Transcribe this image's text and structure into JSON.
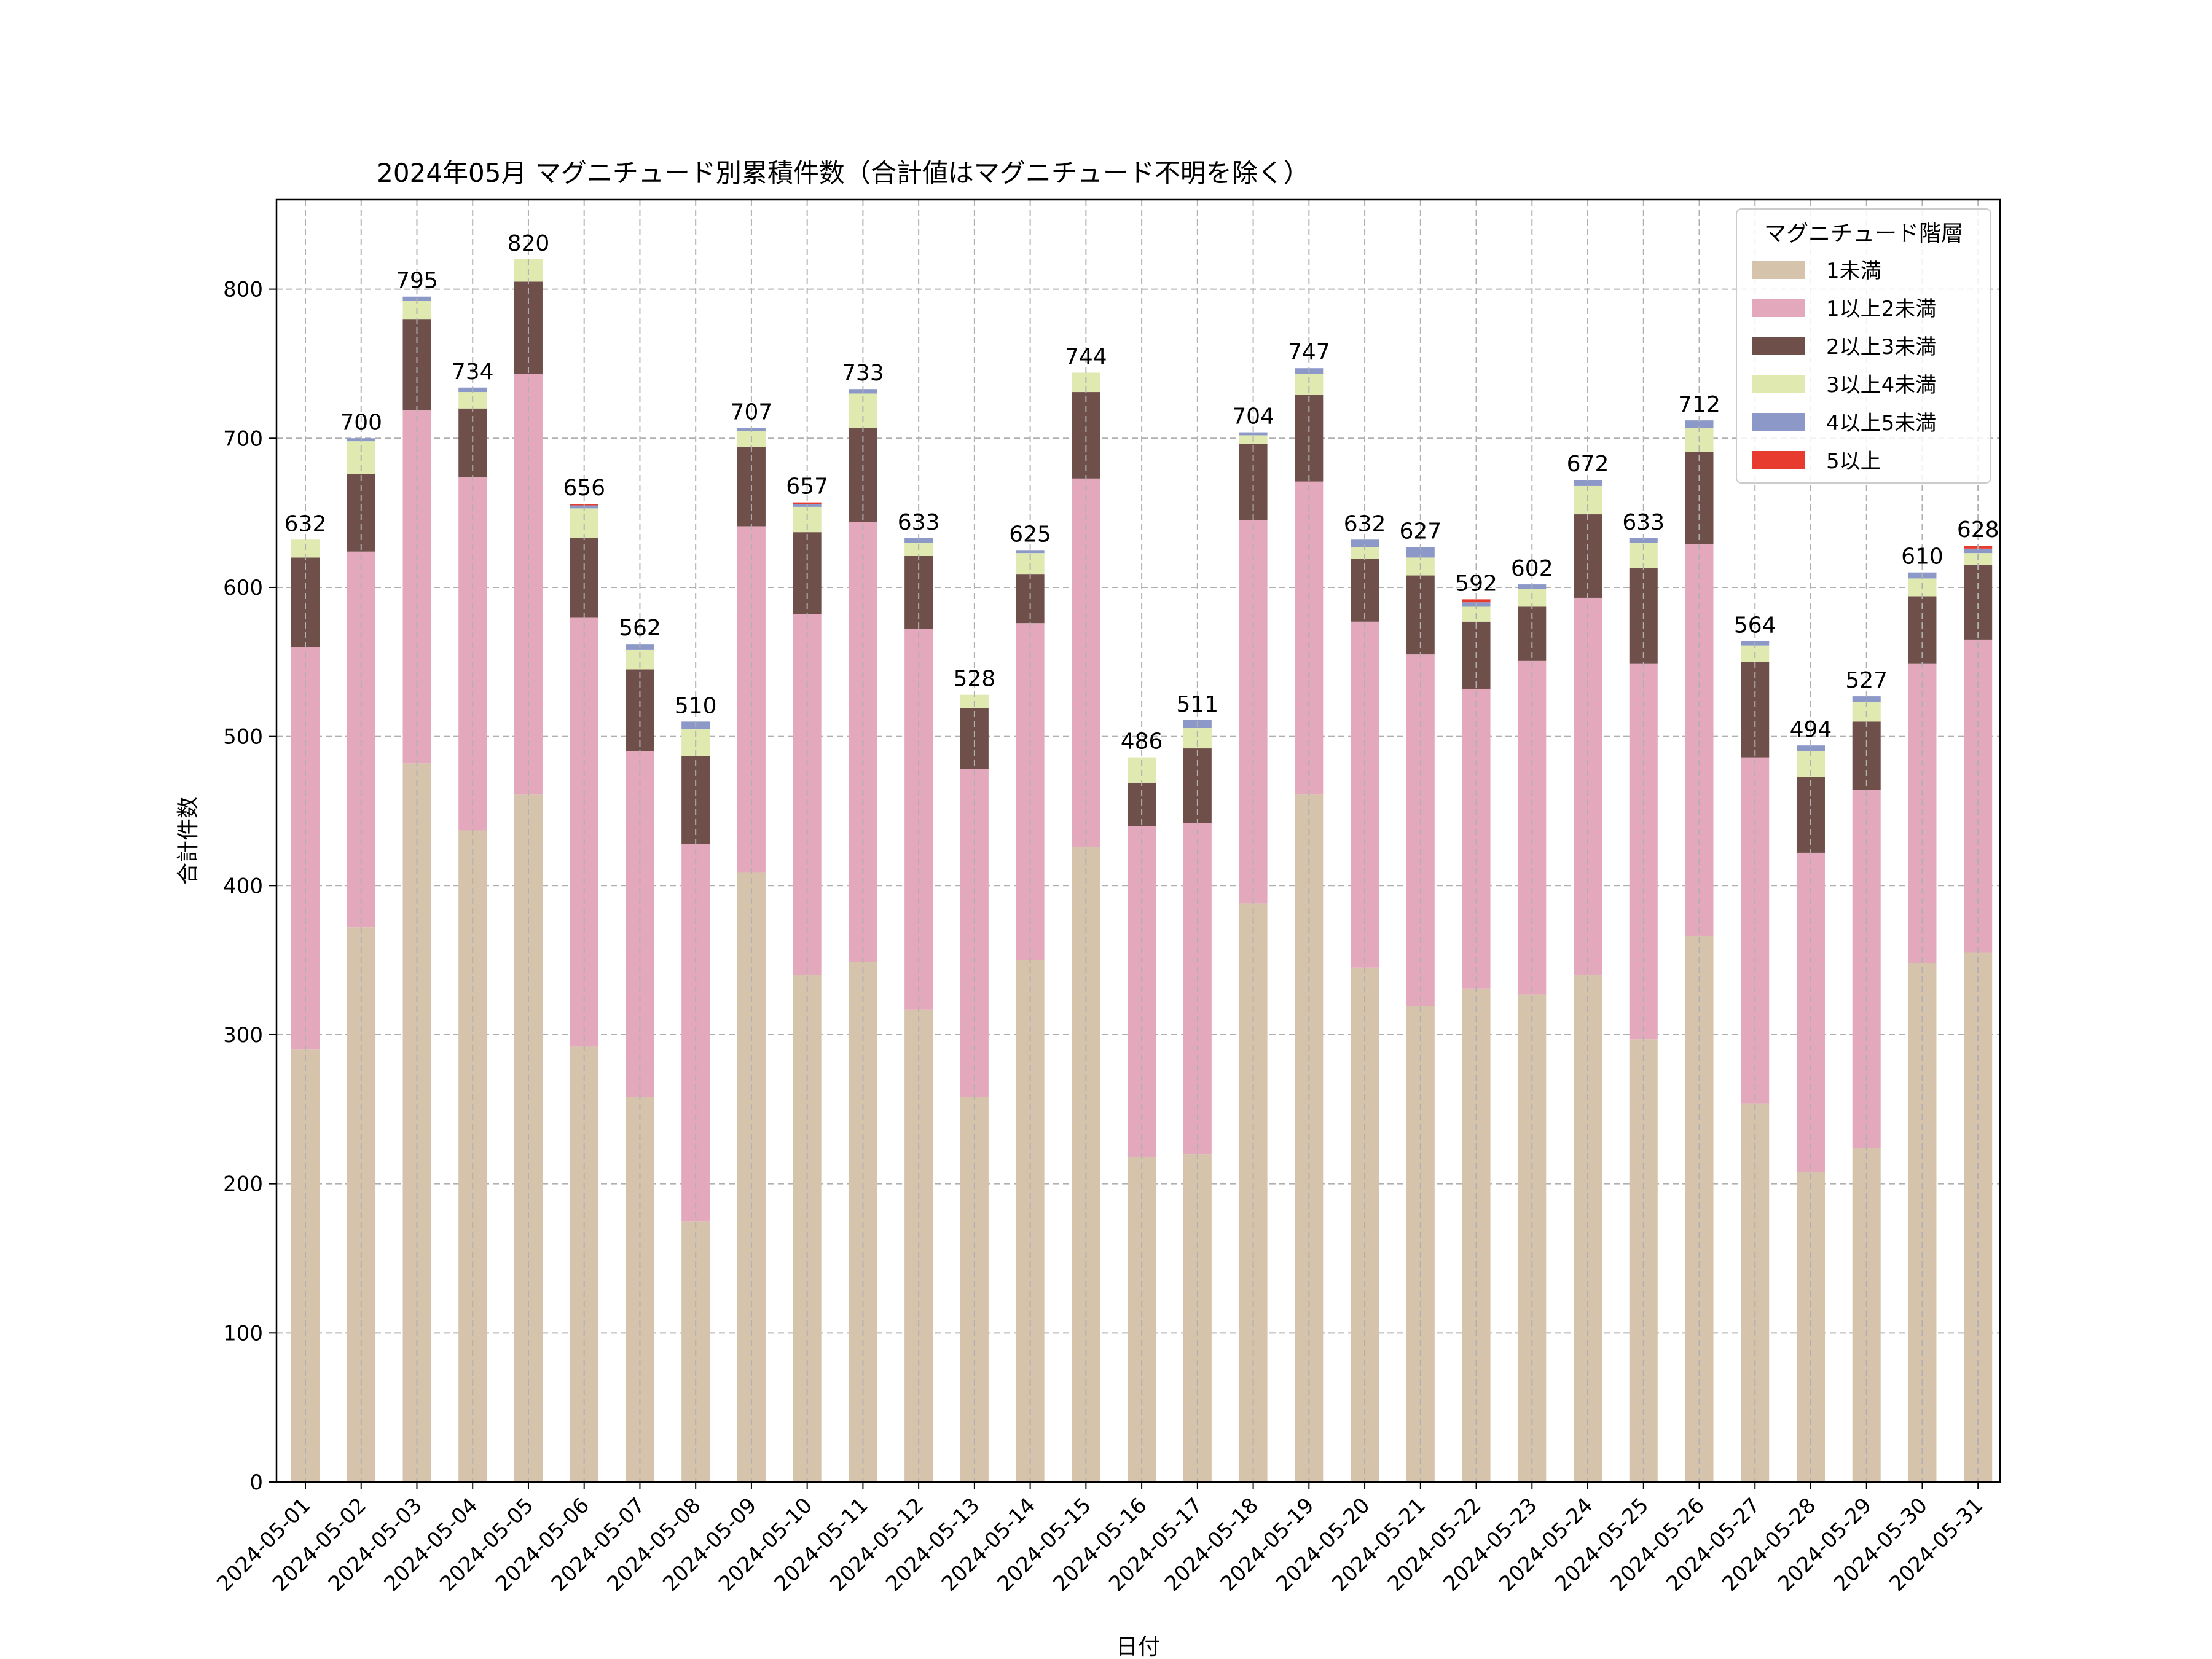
{
  "chart_data": {
    "type": "bar",
    "stacked": true,
    "title": "2024年05月 マグニチュード別累積件数（合計値はマグニチュード不明を除く）",
    "xlabel": "日付",
    "ylabel": "合計件数",
    "ylim": [
      0,
      860
    ],
    "yticks": [
      0,
      100,
      200,
      300,
      400,
      500,
      600,
      700,
      800
    ],
    "grid": true,
    "legend_title": "マグニチュード階層",
    "legend_position": "top-right",
    "categories": [
      "2024-05-01",
      "2024-05-02",
      "2024-05-03",
      "2024-05-04",
      "2024-05-05",
      "2024-05-06",
      "2024-05-07",
      "2024-05-08",
      "2024-05-09",
      "2024-05-10",
      "2024-05-11",
      "2024-05-12",
      "2024-05-13",
      "2024-05-14",
      "2024-05-15",
      "2024-05-16",
      "2024-05-17",
      "2024-05-18",
      "2024-05-19",
      "2024-05-20",
      "2024-05-21",
      "2024-05-22",
      "2024-05-23",
      "2024-05-24",
      "2024-05-25",
      "2024-05-26",
      "2024-05-27",
      "2024-05-28",
      "2024-05-29",
      "2024-05-30",
      "2024-05-31"
    ],
    "totals": [
      632,
      700,
      795,
      734,
      820,
      656,
      562,
      510,
      707,
      657,
      733,
      633,
      528,
      625,
      744,
      486,
      511,
      704,
      747,
      632,
      627,
      592,
      602,
      672,
      633,
      712,
      564,
      494,
      527,
      610,
      628
    ],
    "series": [
      {
        "name": "1未満",
        "color": "#d5c3ab",
        "values": [
          290,
          372,
          482,
          437,
          461,
          292,
          258,
          175,
          409,
          340,
          349,
          317,
          258,
          350,
          426,
          218,
          220,
          388,
          461,
          345,
          319,
          331,
          327,
          340,
          297,
          366,
          254,
          208,
          224,
          348,
          355
        ]
      },
      {
        "name": "1以上2未満",
        "color": "#e4a8bd",
        "values": [
          270,
          252,
          237,
          237,
          282,
          288,
          232,
          253,
          232,
          242,
          295,
          255,
          220,
          226,
          247,
          222,
          222,
          257,
          210,
          232,
          236,
          201,
          224,
          253,
          252,
          263,
          232,
          214,
          240,
          201,
          210
        ]
      },
      {
        "name": "2以上3未満",
        "color": "#6e4f4a",
        "values": [
          60,
          52,
          61,
          46,
          62,
          53,
          55,
          59,
          53,
          55,
          63,
          49,
          41,
          33,
          58,
          29,
          50,
          51,
          58,
          42,
          53,
          45,
          36,
          56,
          64,
          62,
          64,
          51,
          46,
          45,
          50
        ]
      },
      {
        "name": "3以上4未満",
        "color": "#dfe9b0",
        "values": [
          12,
          22,
          12,
          11,
          15,
          20,
          13,
          18,
          11,
          17,
          23,
          9,
          9,
          14,
          13,
          17,
          14,
          6,
          14,
          8,
          12,
          10,
          12,
          19,
          17,
          16,
          11,
          17,
          13,
          12,
          8
        ]
      },
      {
        "name": "4以上5未満",
        "color": "#8b98c8",
        "values": [
          0,
          2,
          3,
          3,
          0,
          2,
          4,
          5,
          2,
          2,
          3,
          3,
          0,
          2,
          0,
          0,
          5,
          2,
          4,
          5,
          7,
          3,
          3,
          4,
          3,
          5,
          3,
          4,
          4,
          4,
          3
        ]
      },
      {
        "name": "5以上",
        "color": "#e63b2e",
        "values": [
          0,
          0,
          0,
          0,
          0,
          1,
          0,
          0,
          0,
          1,
          0,
          0,
          0,
          0,
          0,
          0,
          0,
          0,
          0,
          0,
          0,
          2,
          0,
          0,
          0,
          0,
          0,
          0,
          0,
          0,
          2
        ]
      }
    ]
  }
}
